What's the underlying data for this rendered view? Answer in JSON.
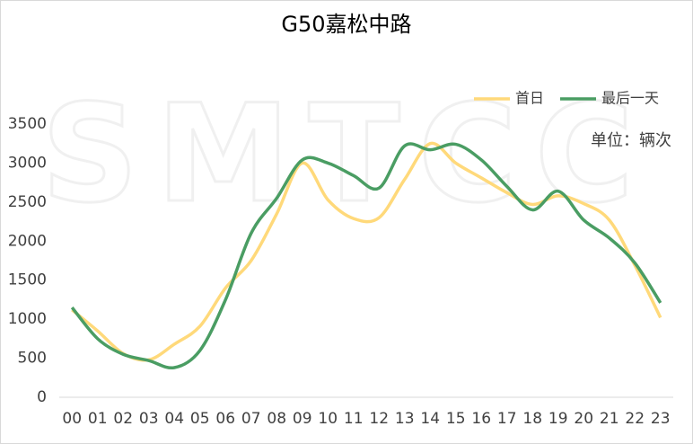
{
  "chart_data": {
    "type": "line",
    "title": "G50嘉松中路",
    "unit_label": "单位：辆次",
    "watermark": "SMTCC",
    "categories": [
      "00",
      "01",
      "02",
      "03",
      "04",
      "05",
      "06",
      "07",
      "08",
      "09",
      "10",
      "11",
      "12",
      "13",
      "14",
      "15",
      "16",
      "17",
      "18",
      "19",
      "20",
      "21",
      "22",
      "23"
    ],
    "series": [
      {
        "name": "首日",
        "color": "#FFD97A",
        "values": [
          1120,
          850,
          560,
          480,
          680,
          910,
          1400,
          1750,
          2350,
          3000,
          2530,
          2290,
          2300,
          2790,
          3250,
          3000,
          2810,
          2620,
          2470,
          2580,
          2480,
          2270,
          1690,
          1020
        ]
      },
      {
        "name": "最后一天",
        "color": "#4A9D63",
        "values": [
          1150,
          750,
          550,
          470,
          380,
          600,
          1250,
          2100,
          2550,
          3040,
          3000,
          2840,
          2680,
          3220,
          3170,
          3240,
          3040,
          2700,
          2400,
          2640,
          2270,
          2040,
          1720,
          1210
        ]
      }
    ],
    "ylim": [
      0,
      3500
    ],
    "yticks": [
      0,
      500,
      1000,
      1500,
      2000,
      2500,
      3000,
      3500
    ],
    "grid": false,
    "legend": "top-right"
  }
}
